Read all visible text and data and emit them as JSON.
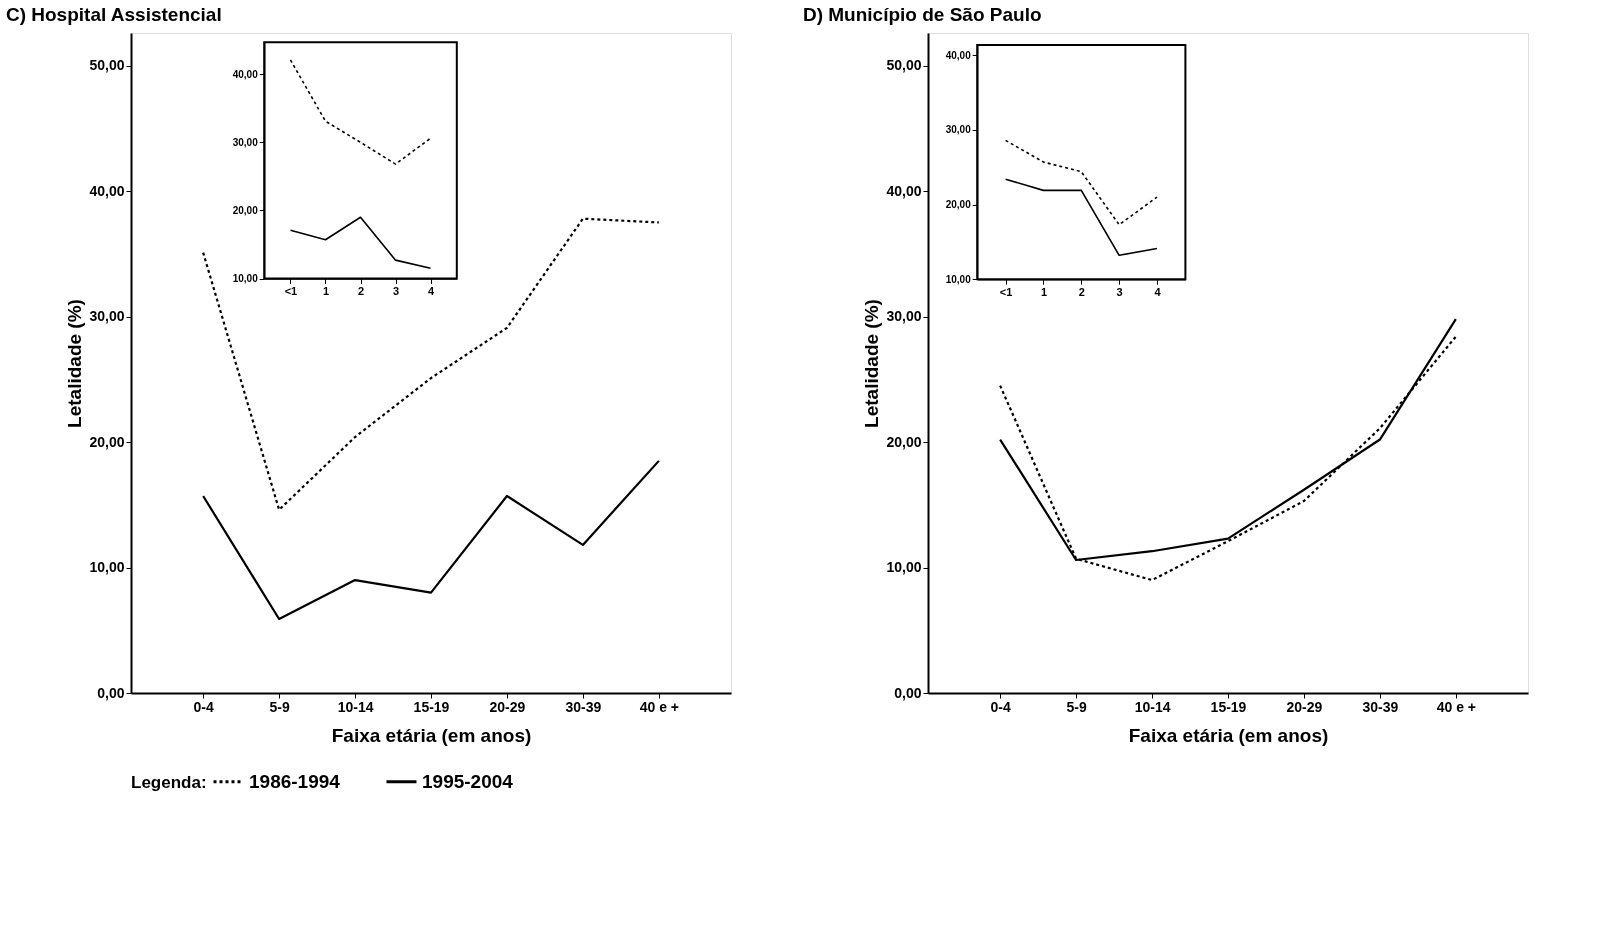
{
  "chart_data": [
    {
      "type": "line",
      "title": "C)  Hospital Assistencial",
      "xlabel": "Faixa etária (em anos)",
      "ylabel": "Letalidade (%)",
      "legend_title": "Legenda:",
      "legend": "bottom",
      "grid": false,
      "marker": "none",
      "categories": [
        "0-4",
        "5-9",
        "10-14",
        "15-19",
        "20-29",
        "30-39",
        "40 e +"
      ],
      "ylim": [
        0,
        52.6
      ],
      "yticks": [
        {
          "value": 0,
          "label": "0,00"
        },
        {
          "value": 10,
          "label": "10,00"
        },
        {
          "value": 20,
          "label": "20,00"
        },
        {
          "value": 30,
          "label": "30,00"
        },
        {
          "value": 40,
          "label": "40,00"
        },
        {
          "value": 50,
          "label": "50,00"
        }
      ],
      "series": [
        {
          "name": "1986-1994",
          "color": "#000000",
          "line_style": "dotted",
          "values": [
            35.1,
            14.6,
            20.4,
            25.1,
            29.1,
            37.8,
            37.5
          ]
        },
        {
          "name": "1995-2004",
          "color": "#000000",
          "line_style": "solid",
          "values": [
            15.7,
            5.9,
            9.0,
            8.0,
            15.7,
            11.8,
            18.5
          ]
        }
      ]
    },
    {
      "type": "line",
      "grid": false,
      "marker": "none",
      "categories": [
        "<1",
        "1",
        "2",
        "3",
        "4"
      ],
      "ylim": [
        10,
        44.7
      ],
      "yticks": [
        {
          "value": 10,
          "label": "10,00"
        },
        {
          "value": 20,
          "label": "20,00"
        },
        {
          "value": 30,
          "label": "30,00"
        },
        {
          "value": 40,
          "label": "40,00"
        }
      ],
      "series": [
        {
          "color": "#000000",
          "line_style": "dotted",
          "values": [
            42.1,
            33.1,
            30.0,
            26.8,
            30.6
          ]
        },
        {
          "color": "#000000",
          "line_style": "solid",
          "values": [
            17.1,
            15.7,
            19.0,
            12.7,
            11.5
          ]
        }
      ]
    },
    {
      "type": "line",
      "title": "D)  Município de São Paulo",
      "xlabel": "Faixa etária (em anos)",
      "ylabel": "Letalidade (%)",
      "grid": false,
      "marker": "none",
      "categories": [
        "0-4",
        "5-9",
        "10-14",
        "15-19",
        "20-29",
        "30-39",
        "40 e +"
      ],
      "ylim": [
        0,
        52.6
      ],
      "yticks": [
        {
          "value": 0,
          "label": "0,00"
        },
        {
          "value": 10,
          "label": "10,00"
        },
        {
          "value": 20,
          "label": "20,00"
        },
        {
          "value": 30,
          "label": "30,00"
        },
        {
          "value": 40,
          "label": "40,00"
        },
        {
          "value": 50,
          "label": "50,00"
        }
      ],
      "series": [
        {
          "color": "#000000",
          "line_style": "dotted",
          "values": [
            24.5,
            10.7,
            9.0,
            12.1,
            15.3,
            21.1,
            28.4
          ]
        },
        {
          "color": "#000000",
          "line_style": "solid",
          "values": [
            20.2,
            10.6,
            11.3,
            12.3,
            16.2,
            20.2,
            29.8
          ]
        }
      ]
    },
    {
      "type": "line",
      "grid": false,
      "marker": "none",
      "categories": [
        "<1",
        "1",
        "2",
        "3",
        "4"
      ],
      "ylim": [
        10,
        41.4
      ],
      "yticks": [
        {
          "value": 10,
          "label": "10,00"
        },
        {
          "value": 20,
          "label": "20,00"
        },
        {
          "value": 30,
          "label": "30,00"
        },
        {
          "value": 40,
          "label": "40,00"
        }
      ],
      "series": [
        {
          "color": "#000000",
          "line_style": "dotted",
          "values": [
            28.6,
            25.7,
            24.4,
            17.3,
            21.0
          ]
        },
        {
          "color": "#000000",
          "line_style": "solid",
          "values": [
            23.4,
            21.9,
            21.9,
            13.2,
            14.1
          ]
        }
      ]
    }
  ]
}
